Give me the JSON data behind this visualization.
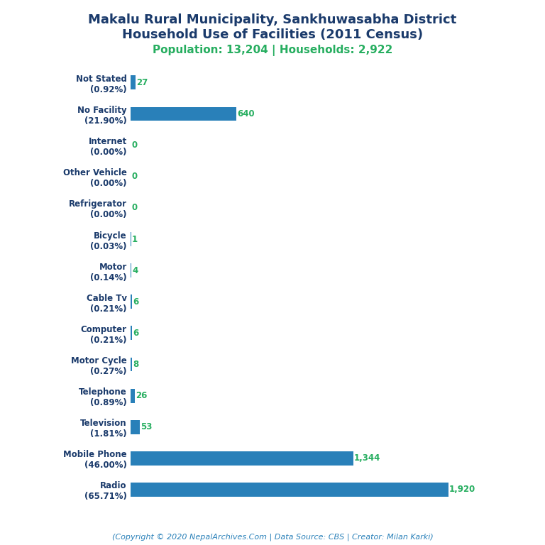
{
  "title_line1": "Makalu Rural Municipality, Sankhuwasabha District",
  "title_line2": "Household Use of Facilities (2011 Census)",
  "subtitle": "Population: 13,204 | Households: 2,922",
  "footer": "(Copyright © 2020 NepalArchives.Com | Data Source: CBS | Creator: Milan Karki)",
  "categories": [
    "Not Stated\n(0.92%)",
    "No Facility\n(21.90%)",
    "Internet\n(0.00%)",
    "Other Vehicle\n(0.00%)",
    "Refrigerator\n(0.00%)",
    "Bicycle\n(0.03%)",
    "Motor\n(0.14%)",
    "Cable Tv\n(0.21%)",
    "Computer\n(0.21%)",
    "Motor Cycle\n(0.27%)",
    "Telephone\n(0.89%)",
    "Television\n(1.81%)",
    "Mobile Phone\n(46.00%)",
    "Radio\n(65.71%)"
  ],
  "values": [
    27,
    640,
    0,
    0,
    0,
    1,
    4,
    6,
    6,
    8,
    26,
    53,
    1344,
    1920
  ],
  "bar_color": "#2980b9",
  "title_color": "#1a3a6b",
  "subtitle_color": "#27ae60",
  "footer_color": "#2980b9",
  "value_color": "#27ae60",
  "background_color": "#ffffff"
}
